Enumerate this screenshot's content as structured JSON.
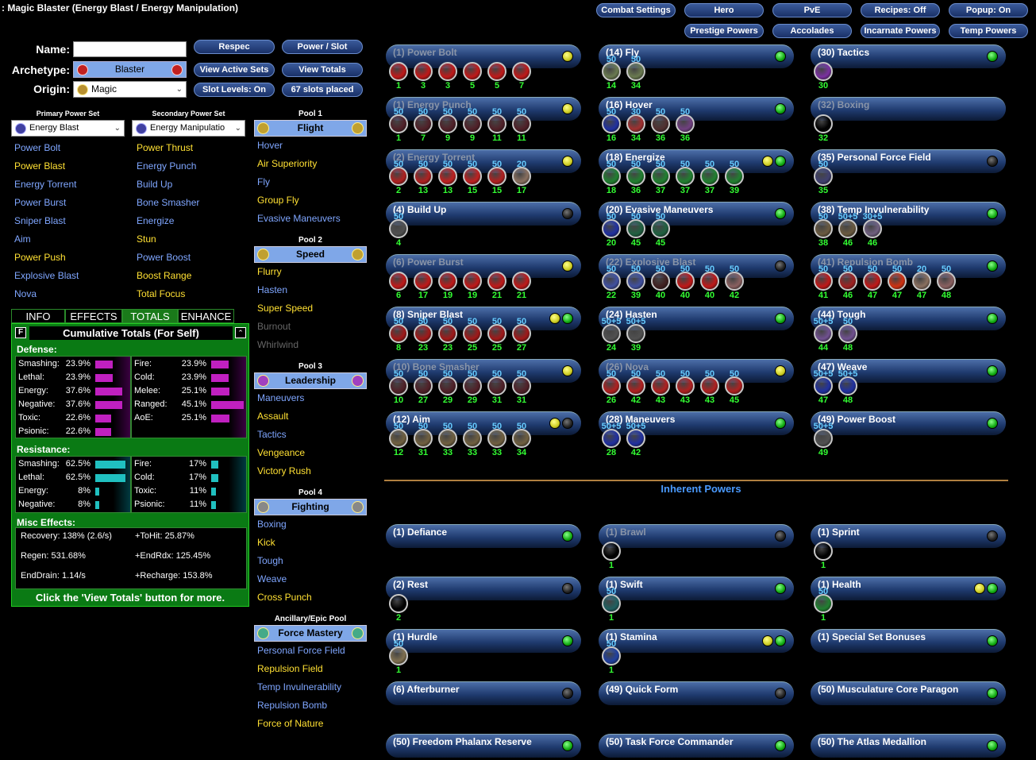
{
  "title": ": Magic Blaster (Energy Blast / Energy Manipulation)",
  "top_buttons": [
    "Combat Settings",
    "Hero",
    "PvE",
    "Recipes: Off",
    "Popup: On",
    "Prestige Powers",
    "Accolades",
    "Incarnate Powers",
    "Temp Powers"
  ],
  "labels": {
    "name": "Name:",
    "archetype": "Archetype:",
    "origin": "Origin:"
  },
  "archetype": "Blaster",
  "origin": "Magic",
  "mid_buttons": [
    "Respec",
    "Power / Slot",
    "View Active Sets",
    "View Totals",
    "Slot Levels: On",
    "67 slots placed"
  ],
  "primary": {
    "header": "Primary Power Set",
    "selected": "Energy Blast",
    "powers": [
      {
        "n": "Power Bolt",
        "s": "avail"
      },
      {
        "n": "Power Blast",
        "s": "taken"
      },
      {
        "n": "Energy Torrent",
        "s": "avail"
      },
      {
        "n": "Power Burst",
        "s": "avail"
      },
      {
        "n": "Sniper Blast",
        "s": "avail"
      },
      {
        "n": "Aim",
        "s": "avail"
      },
      {
        "n": "Power Push",
        "s": "taken"
      },
      {
        "n": "Explosive Blast",
        "s": "avail"
      },
      {
        "n": "Nova",
        "s": "avail"
      }
    ]
  },
  "secondary": {
    "header": "Secondary Power Set",
    "selected": "Energy Manipulatio",
    "powers": [
      {
        "n": "Power Thrust",
        "s": "taken"
      },
      {
        "n": "Energy Punch",
        "s": "avail"
      },
      {
        "n": "Build Up",
        "s": "avail"
      },
      {
        "n": "Bone Smasher",
        "s": "avail"
      },
      {
        "n": "Energize",
        "s": "avail"
      },
      {
        "n": "Stun",
        "s": "taken"
      },
      {
        "n": "Power Boost",
        "s": "avail"
      },
      {
        "n": "Boost Range",
        "s": "taken"
      },
      {
        "n": "Total Focus",
        "s": "taken"
      }
    ]
  },
  "pools": [
    {
      "header": "Pool 1",
      "name": "Flight",
      "powers": [
        {
          "n": "Hover",
          "s": "avail"
        },
        {
          "n": "Air Superiority",
          "s": "taken"
        },
        {
          "n": "Fly",
          "s": "avail"
        },
        {
          "n": "Group Fly",
          "s": "taken"
        },
        {
          "n": "Evasive Maneuvers",
          "s": "avail"
        }
      ]
    },
    {
      "header": "Pool 2",
      "name": "Speed",
      "powers": [
        {
          "n": "Flurry",
          "s": "taken"
        },
        {
          "n": "Hasten",
          "s": "avail"
        },
        {
          "n": "Super Speed",
          "s": "taken"
        },
        {
          "n": "Burnout",
          "s": "dim"
        },
        {
          "n": "Whirlwind",
          "s": "dim"
        }
      ]
    },
    {
      "header": "Pool 3",
      "name": "Leadership",
      "powers": [
        {
          "n": "Maneuvers",
          "s": "avail"
        },
        {
          "n": "Assault",
          "s": "taken"
        },
        {
          "n": "Tactics",
          "s": "avail"
        },
        {
          "n": "Vengeance",
          "s": "taken"
        },
        {
          "n": "Victory Rush",
          "s": "taken"
        }
      ]
    },
    {
      "header": "Pool 4",
      "name": "Fighting",
      "powers": [
        {
          "n": "Boxing",
          "s": "avail"
        },
        {
          "n": "Kick",
          "s": "taken"
        },
        {
          "n": "Tough",
          "s": "avail"
        },
        {
          "n": "Weave",
          "s": "avail"
        },
        {
          "n": "Cross Punch",
          "s": "taken"
        }
      ]
    },
    {
      "header": "Ancillary/Epic Pool",
      "name": "Force Mastery",
      "powers": [
        {
          "n": "Personal Force Field",
          "s": "avail"
        },
        {
          "n": "Repulsion Field",
          "s": "taken"
        },
        {
          "n": "Temp Invulnerability",
          "s": "avail"
        },
        {
          "n": "Repulsion Bomb",
          "s": "avail"
        },
        {
          "n": "Force of Nature",
          "s": "taken"
        }
      ]
    }
  ],
  "tabs": [
    "INFO",
    "EFFECTS",
    "TOTALS",
    "ENHANCE"
  ],
  "totals": {
    "heading": "Cumulative Totals (For Self)",
    "defense_label": "Defense:",
    "defense_left": [
      [
        "Smashing:",
        "23.9%",
        0.239
      ],
      [
        "Lethal:",
        "23.9%",
        0.239
      ],
      [
        "Energy:",
        "37.6%",
        0.376
      ],
      [
        "Negative:",
        "37.6%",
        0.376
      ],
      [
        "Toxic:",
        "22.6%",
        0.226
      ],
      [
        "Psionic:",
        "22.6%",
        0.226
      ]
    ],
    "defense_right": [
      [
        "Fire:",
        "23.9%",
        0.239
      ],
      [
        "Cold:",
        "23.9%",
        0.239
      ],
      [
        "Melee:",
        "25.1%",
        0.251
      ],
      [
        "Ranged:",
        "45.1%",
        0.451
      ],
      [
        "AoE:",
        "25.1%",
        0.251
      ]
    ],
    "resistance_label": "Resistance:",
    "res_left": [
      [
        "Smashing:",
        "62.5%",
        0.625
      ],
      [
        "Lethal:",
        "62.5%",
        0.625
      ],
      [
        "Energy:",
        "8%",
        0.08
      ],
      [
        "Negative:",
        "8%",
        0.08
      ]
    ],
    "res_right": [
      [
        "Fire:",
        "17%",
        0.17
      ],
      [
        "Cold:",
        "17%",
        0.17
      ],
      [
        "Toxic:",
        "11%",
        0.11
      ],
      [
        "Psionic:",
        "11%",
        0.11
      ]
    ],
    "misc_label": "Misc Effects:",
    "misc": [
      [
        "Recovery: 138% (2.6/s)",
        "+ToHit: 25.87%"
      ],
      [
        "Regen: 531.68%",
        "+EndRdx: 125.45%"
      ],
      [
        "EndDrain: 1.14/s",
        "+Recharge: 153.8%"
      ]
    ],
    "footer": "Click the 'View Totals' button for more."
  },
  "f_label": "F",
  "inherent_title": "Inherent Powers",
  "powers": [
    {
      "n": "(1) Power Bolt",
      "dim": true,
      "lights": [
        "y"
      ],
      "slots": [
        [
          "1",
          "",
          "#c01818"
        ],
        [
          "3",
          "",
          "#c01818"
        ],
        [
          "3",
          "",
          "#c01818"
        ],
        [
          "5",
          "",
          "#c01818"
        ],
        [
          "5",
          "",
          "#c01818"
        ],
        [
          "7",
          "",
          "#c01818"
        ]
      ]
    },
    {
      "n": "(14) Fly",
      "lights": [
        "g"
      ],
      "slots": [
        [
          "14",
          "50",
          "#6a7a50"
        ],
        [
          "34",
          "50",
          "#6a7a50"
        ]
      ]
    },
    {
      "n": "(30) Tactics",
      "lights": [
        "g"
      ],
      "slots": [
        [
          "30",
          "",
          "#7a30a0"
        ]
      ]
    },
    {
      "n": "(1) Energy Punch",
      "dim": true,
      "lights": [
        "y"
      ],
      "slots": [
        [
          "1",
          "50",
          "#502028"
        ],
        [
          "7",
          "50",
          "#502028"
        ],
        [
          "9",
          "50",
          "#502028"
        ],
        [
          "9",
          "50",
          "#502028"
        ],
        [
          "11",
          "50",
          "#502028"
        ],
        [
          "11",
          "50",
          "#502028"
        ]
      ]
    },
    {
      "n": "(16) Hover",
      "lights": [
        "g"
      ],
      "slots": [
        [
          "16",
          "50",
          "#2030a0"
        ],
        [
          "34",
          "30",
          "#a03030"
        ],
        [
          "36",
          "50",
          "#503030"
        ],
        [
          "36",
          "50",
          "#704080"
        ]
      ]
    },
    {
      "n": "(32) Boxing",
      "dim": true,
      "lights": [],
      "slots": [
        [
          "32",
          "",
          "#000"
        ]
      ]
    },
    {
      "n": "(2) Energy Torrent",
      "dim": true,
      "lights": [
        "y"
      ],
      "slots": [
        [
          "2",
          "50",
          "#b02020"
        ],
        [
          "13",
          "50",
          "#b02020"
        ],
        [
          "13",
          "50",
          "#c02020"
        ],
        [
          "15",
          "50",
          "#c02020"
        ],
        [
          "15",
          "50",
          "#b02020"
        ],
        [
          "17",
          "20",
          "#8a7060"
        ]
      ]
    },
    {
      "n": "(18) Energize",
      "lights": [
        "y",
        "g"
      ],
      "slots": [
        [
          "18",
          "50",
          "#208030"
        ],
        [
          "36",
          "50",
          "#208030"
        ],
        [
          "37",
          "50",
          "#208030"
        ],
        [
          "37",
          "50",
          "#208030"
        ],
        [
          "37",
          "50",
          "#208030"
        ],
        [
          "39",
          "50",
          "#208030"
        ]
      ]
    },
    {
      "n": "(35) Personal Force Field",
      "lights": [
        "b"
      ],
      "slots": [
        [
          "35",
          "50",
          "#404070"
        ]
      ]
    },
    {
      "n": "(4) Build Up",
      "lights": [
        "b"
      ],
      "slots": [
        [
          "4",
          "50",
          "#505050"
        ]
      ]
    },
    {
      "n": "(20) Evasive Maneuvers",
      "lights": [
        "g"
      ],
      "slots": [
        [
          "20",
          "50",
          "#2030a0"
        ],
        [
          "45",
          "50",
          "#206040"
        ],
        [
          "45",
          "50",
          "#206040"
        ]
      ]
    },
    {
      "n": "(38) Temp Invulnerability",
      "lights": [
        "g"
      ],
      "slots": [
        [
          "38",
          "50",
          "#6a5a40"
        ],
        [
          "46",
          "50+5",
          "#6a5a40"
        ],
        [
          "46",
          "30+5",
          "#706080"
        ]
      ]
    },
    {
      "n": "(6) Power Burst",
      "dim": true,
      "lights": [
        "y"
      ],
      "slots": [
        [
          "6",
          "",
          "#c01818"
        ],
        [
          "17",
          "",
          "#c01818"
        ],
        [
          "19",
          "",
          "#c01818"
        ],
        [
          "19",
          "",
          "#c01818"
        ],
        [
          "21",
          "",
          "#c01818"
        ],
        [
          "21",
          "",
          "#c01818"
        ]
      ]
    },
    {
      "n": "(22) Explosive Blast",
      "dim": true,
      "lights": [
        "b"
      ],
      "slots": [
        [
          "22",
          "50",
          "#4050a0"
        ],
        [
          "39",
          "50",
          "#4050a0"
        ],
        [
          "40",
          "50",
          "#402020"
        ],
        [
          "40",
          "50",
          "#c01818"
        ],
        [
          "40",
          "50",
          "#c01818"
        ],
        [
          "42",
          "50",
          "#8a6060"
        ]
      ]
    },
    {
      "n": "(41) Repulsion Bomb",
      "dim": true,
      "lights": [
        "g"
      ],
      "slots": [
        [
          "41",
          "50",
          "#c01818"
        ],
        [
          "46",
          "50",
          "#a02020"
        ],
        [
          "47",
          "50",
          "#c01818"
        ],
        [
          "47",
          "50",
          "#d03010"
        ],
        [
          "47",
          "20",
          "#8a7060"
        ],
        [
          "48",
          "50",
          "#8a6060"
        ]
      ]
    },
    {
      "n": "(8) Sniper Blast",
      "lights": [
        "y",
        "g"
      ],
      "slots": [
        [
          "8",
          "50",
          "#a01818"
        ],
        [
          "23",
          "50",
          "#a01818"
        ],
        [
          "23",
          "50",
          "#a01818"
        ],
        [
          "25",
          "50",
          "#a01818"
        ],
        [
          "25",
          "50",
          "#a01818"
        ],
        [
          "27",
          "50",
          "#a01818"
        ]
      ]
    },
    {
      "n": "(24) Hasten",
      "lights": [
        "g"
      ],
      "slots": [
        [
          "24",
          "50+5",
          "#505050"
        ],
        [
          "39",
          "50+5",
          "#505050"
        ]
      ]
    },
    {
      "n": "(44) Tough",
      "lights": [
        "g"
      ],
      "slots": [
        [
          "44",
          "50+5",
          "#705090"
        ],
        [
          "48",
          "50",
          "#705090"
        ]
      ]
    },
    {
      "n": "(10) Bone Smasher",
      "dim": true,
      "lights": [
        "y"
      ],
      "slots": [
        [
          "10",
          "50",
          "#502028"
        ],
        [
          "27",
          "50",
          "#502028"
        ],
        [
          "29",
          "50",
          "#502028"
        ],
        [
          "29",
          "50",
          "#502028"
        ],
        [
          "31",
          "50",
          "#502028"
        ],
        [
          "31",
          "50",
          "#502028"
        ]
      ]
    },
    {
      "n": "(26) Nova",
      "dim": true,
      "lights": [
        "y"
      ],
      "slots": [
        [
          "26",
          "50",
          "#b02020"
        ],
        [
          "42",
          "50",
          "#b02020"
        ],
        [
          "43",
          "50",
          "#b02020"
        ],
        [
          "43",
          "50",
          "#b02020"
        ],
        [
          "43",
          "50",
          "#b02020"
        ],
        [
          "45",
          "50",
          "#b02020"
        ]
      ]
    },
    {
      "n": "(47) Weave",
      "lights": [
        "g"
      ],
      "slots": [
        [
          "47",
          "50+5",
          "#2030a0"
        ],
        [
          "48",
          "50+5",
          "#2030a0"
        ]
      ]
    },
    {
      "n": "(12) Aim",
      "lights": [
        "y",
        "b"
      ],
      "slots": [
        [
          "12",
          "50",
          "#706040"
        ],
        [
          "31",
          "50",
          "#706040"
        ],
        [
          "33",
          "50",
          "#706040"
        ],
        [
          "33",
          "50",
          "#706040"
        ],
        [
          "33",
          "50",
          "#706040"
        ],
        [
          "34",
          "50",
          "#706040"
        ]
      ]
    },
    {
      "n": "(28) Maneuvers",
      "lights": [
        "g"
      ],
      "slots": [
        [
          "28",
          "50+5",
          "#2030a0"
        ],
        [
          "42",
          "50+5",
          "#2030a0"
        ]
      ]
    },
    {
      "n": "(49) Power Boost",
      "lights": [
        "g"
      ],
      "slots": [
        [
          "49",
          "50+5",
          "#505050"
        ]
      ]
    }
  ],
  "inherent": [
    {
      "n": "(1) Defiance",
      "lights": [
        "g"
      ],
      "slots": []
    },
    {
      "n": "(1) Brawl",
      "dim": true,
      "lights": [
        "b"
      ],
      "slots": [
        [
          "1",
          "",
          "#000"
        ]
      ]
    },
    {
      "n": "(1) Sprint",
      "lights": [
        "b"
      ],
      "slots": [
        [
          "1",
          "",
          "#000"
        ]
      ]
    },
    {
      "n": "(2) Rest",
      "lights": [
        "b"
      ],
      "slots": [
        [
          "2",
          "",
          "#000"
        ]
      ]
    },
    {
      "n": "(1) Swift",
      "lights": [
        "g"
      ],
      "slots": [
        [
          "1",
          "50",
          "#206060"
        ]
      ]
    },
    {
      "n": "(1) Health",
      "lights": [
        "y",
        "g"
      ],
      "slots": [
        [
          "1",
          "50",
          "#208030"
        ]
      ]
    },
    {
      "n": "(1) Hurdle",
      "lights": [
        "g"
      ],
      "slots": [
        [
          "1",
          "50",
          "#807050"
        ]
      ]
    },
    {
      "n": "(1) Stamina",
      "lights": [
        "y",
        "g"
      ],
      "slots": [
        [
          "1",
          "50",
          "#2040a0"
        ]
      ]
    },
    {
      "n": "(1) Special Set Bonuses",
      "lights": [
        "g"
      ],
      "slots": []
    },
    {
      "n": "(6) Afterburner",
      "lights": [
        "b"
      ],
      "slots": []
    },
    {
      "n": "(49) Quick Form",
      "lights": [
        "b"
      ],
      "slots": []
    },
    {
      "n": "(50) Musculature Core Paragon",
      "lights": [
        "g"
      ],
      "slots": []
    },
    {
      "n": "(50) Freedom Phalanx Reserve",
      "lights": [
        "g"
      ],
      "slots": []
    },
    {
      "n": "(50) Task Force Commander",
      "lights": [
        "g"
      ],
      "slots": []
    },
    {
      "n": "(50) The Atlas Medallion",
      "lights": [
        "g"
      ],
      "slots": []
    }
  ]
}
